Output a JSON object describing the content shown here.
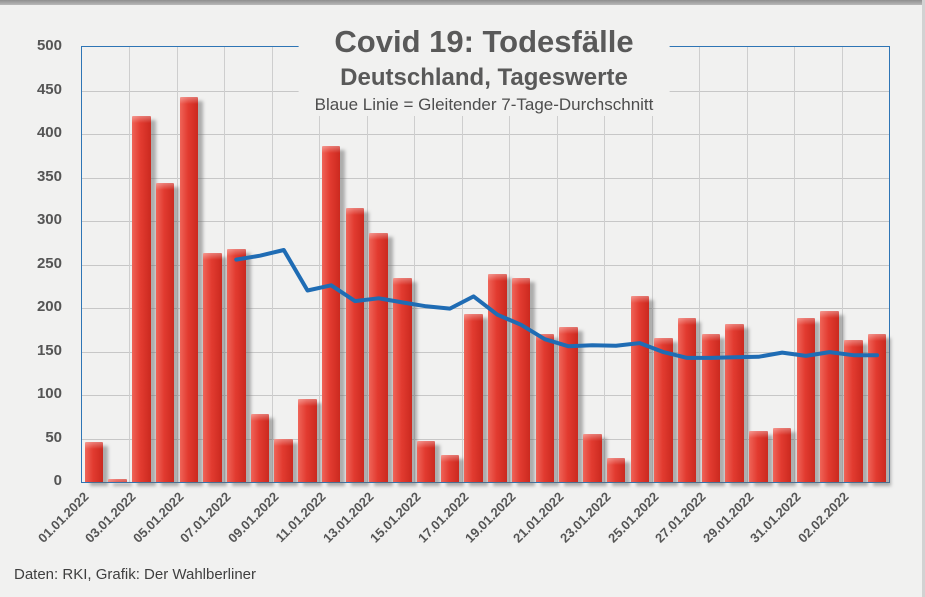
{
  "footer": {
    "text": "Daten: RKI, Grafik: Der Wahlberliner"
  },
  "chart_data": {
    "type": "bar",
    "title": "Covid 19: Todesfälle",
    "subtitle": "Deutschland, Tageswerte",
    "note": "Blaue Linie = Gleitender 7-Tage-Durchschnitt",
    "ylim": [
      0,
      500
    ],
    "yticks": [
      0,
      50,
      100,
      150,
      200,
      250,
      300,
      350,
      400,
      450,
      500
    ],
    "grid": "on",
    "legend": "none",
    "categories": [
      "01.01.2022",
      "02.01.2022",
      "03.01.2022",
      "04.01.2022",
      "05.01.2022",
      "06.01.2022",
      "07.01.2022",
      "08.01.2022",
      "09.01.2022",
      "10.01.2022",
      "11.01.2022",
      "12.01.2022",
      "13.01.2022",
      "14.01.2022",
      "15.01.2022",
      "16.01.2022",
      "17.01.2022",
      "18.01.2022",
      "19.01.2022",
      "20.01.2022",
      "21.01.2022",
      "22.01.2022",
      "23.01.2022",
      "24.01.2022",
      "25.01.2022",
      "26.01.2022",
      "27.01.2022",
      "28.01.2022",
      "29.01.2022",
      "30.01.2022",
      "31.01.2022",
      "01.02.2022",
      "02.02.2022",
      "03.02.2022"
    ],
    "xtick_labels": [
      "01.01.2022",
      "03.01.2022",
      "05.01.2022",
      "07.01.2022",
      "09.01.2022",
      "11.01.2022",
      "13.01.2022",
      "15.01.2022",
      "17.01.2022",
      "19.01.2022",
      "21.01.2022",
      "23.01.2022",
      "25.01.2022",
      "27.01.2022",
      "29.01.2022",
      "31.01.2022",
      "02.02.2022"
    ],
    "series": [
      {
        "name": "Tageswerte",
        "type": "bar",
        "color": "#e23b30",
        "values": [
          46,
          4,
          421,
          344,
          443,
          263,
          268,
          78,
          50,
          95,
          386,
          315,
          286,
          235,
          47,
          31,
          193,
          239,
          234,
          170,
          178,
          55,
          28,
          214,
          166,
          188,
          170,
          182,
          59,
          62,
          188,
          196,
          163,
          170
        ]
      },
      {
        "name": "Gleitender 7-Tage-Durchschnitt",
        "type": "line",
        "color": "#1f6cb4",
        "values": [
          null,
          null,
          null,
          null,
          null,
          null,
          255.6,
          260.1,
          266.7,
          220.1,
          226.1,
          207.9,
          211.1,
          206.4,
          202.0,
          199.3,
          213.3,
          192.3,
          180.7,
          164.1,
          156.0,
          157.1,
          156.7,
          159.7,
          149.3,
          142.7,
          142.7,
          143.3,
          143.9,
          148.7,
          145.0,
          149.3,
          145.7,
          145.7
        ]
      }
    ],
    "colors": {
      "bar_fill": "#e23b30",
      "line": "#1f6cb4",
      "frame": "#2e75b5",
      "grid": "#c7c7c7",
      "text": "#595959",
      "background": "#f1f1f0"
    }
  }
}
